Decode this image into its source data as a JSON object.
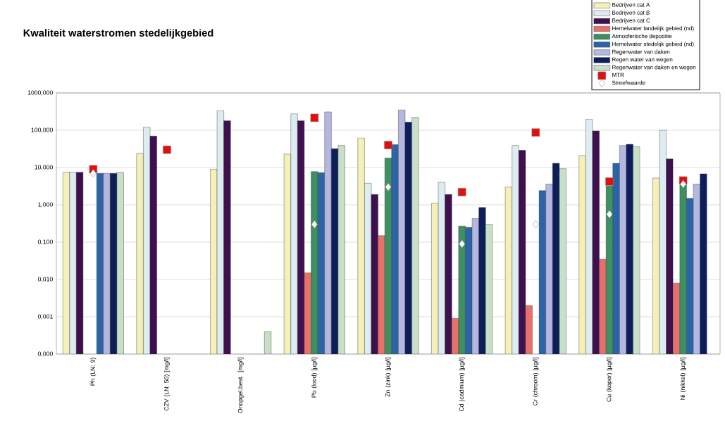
{
  "chart_data": {
    "type": "bar",
    "title": "Kwaliteit waterstromen stedelijkgebied",
    "categories": [
      "Ph (LN: 9)",
      "CZV (LN: 50) [mg/l]",
      "Onopgel.best. [mg/l]",
      "Pb (lood)  [µg/l]",
      "Zn (zink)  [µg/l]",
      "Cd (cadmium) [µg/l]",
      "Cr (chroom)  [µg/l]",
      "Cu (koper)  [µg/l]",
      "Ni (nikkel)  [µg/l]"
    ],
    "log": "y",
    "ylim": [
      0.0001,
      1000
    ],
    "yticks": [
      {
        "value": 0.0001,
        "label": "0,000"
      },
      {
        "value": 0.001,
        "label": "0,001"
      },
      {
        "value": 0.01,
        "label": "0,010"
      },
      {
        "value": 0.1,
        "label": "0,100"
      },
      {
        "value": 1,
        "label": "1,000"
      },
      {
        "value": 10,
        "label": "10,000"
      },
      {
        "value": 100,
        "label": "100,000"
      },
      {
        "value": 1000,
        "label": "1000,000"
      }
    ],
    "grid": "y",
    "legend": "top right",
    "series": [
      {
        "name": "Bedrijven cat A",
        "color": "#f5f0b8",
        "values": [
          7.5,
          24,
          9,
          23,
          62,
          1.1,
          3,
          21,
          5.2
        ]
      },
      {
        "name": "Bedrijven cat B",
        "color": "#dcecf0",
        "values": [
          7.5,
          120,
          340,
          275,
          3.8,
          4,
          39,
          195,
          100
        ]
      },
      {
        "name": "Bedrijven cat C",
        "color": "#3f1050",
        "values": [
          7.5,
          70,
          180,
          180,
          1.9,
          1.9,
          29,
          96,
          17
        ]
      },
      {
        "name": "Hemelwater landelijk gebied (nd)",
        "color": "#e8706a",
        "values": [
          null,
          null,
          null,
          0.015,
          0.15,
          0.0009,
          0.002,
          0.035,
          0.008
        ]
      },
      {
        "name": "Atmosferische depositie",
        "color": "#3d9060",
        "values": [
          null,
          null,
          null,
          7.8,
          18,
          0.27,
          null,
          3.2,
          3.4
        ]
      },
      {
        "name": "Hemelwater stedelijk gebied (nd)",
        "color": "#2c64a8",
        "values": [
          7,
          null,
          null,
          7.3,
          41,
          0.25,
          2.4,
          13,
          1.5
        ]
      },
      {
        "name": "Regenwater van daken",
        "color": "#b4b8e0",
        "values": [
          7,
          null,
          null,
          310,
          350,
          0.43,
          3.6,
          39,
          3.6
        ]
      },
      {
        "name": "Regen water van wegen",
        "color": "#0c1e5c",
        "values": [
          7,
          null,
          null,
          32,
          165,
          0.85,
          13,
          42,
          6.8
        ]
      },
      {
        "name": "Regenwater van daken en wegen",
        "color": "#c8e0c8",
        "values": [
          7.5,
          null,
          0.0004,
          39,
          220,
          0.3,
          9.3,
          36,
          null
        ]
      },
      {
        "name": "MTR",
        "type": "scatter",
        "marker": "square",
        "color": "#e01010",
        "values": [
          9,
          30,
          null,
          215,
          40,
          2.2,
          87,
          4.2,
          4.5
        ]
      },
      {
        "name": "Streefwaarde",
        "type": "scatter",
        "marker": "diamond",
        "color": "#ffffff",
        "values": [
          7,
          null,
          null,
          0.3,
          3,
          0.09,
          0.3,
          0.56,
          3.6
        ]
      }
    ]
  }
}
